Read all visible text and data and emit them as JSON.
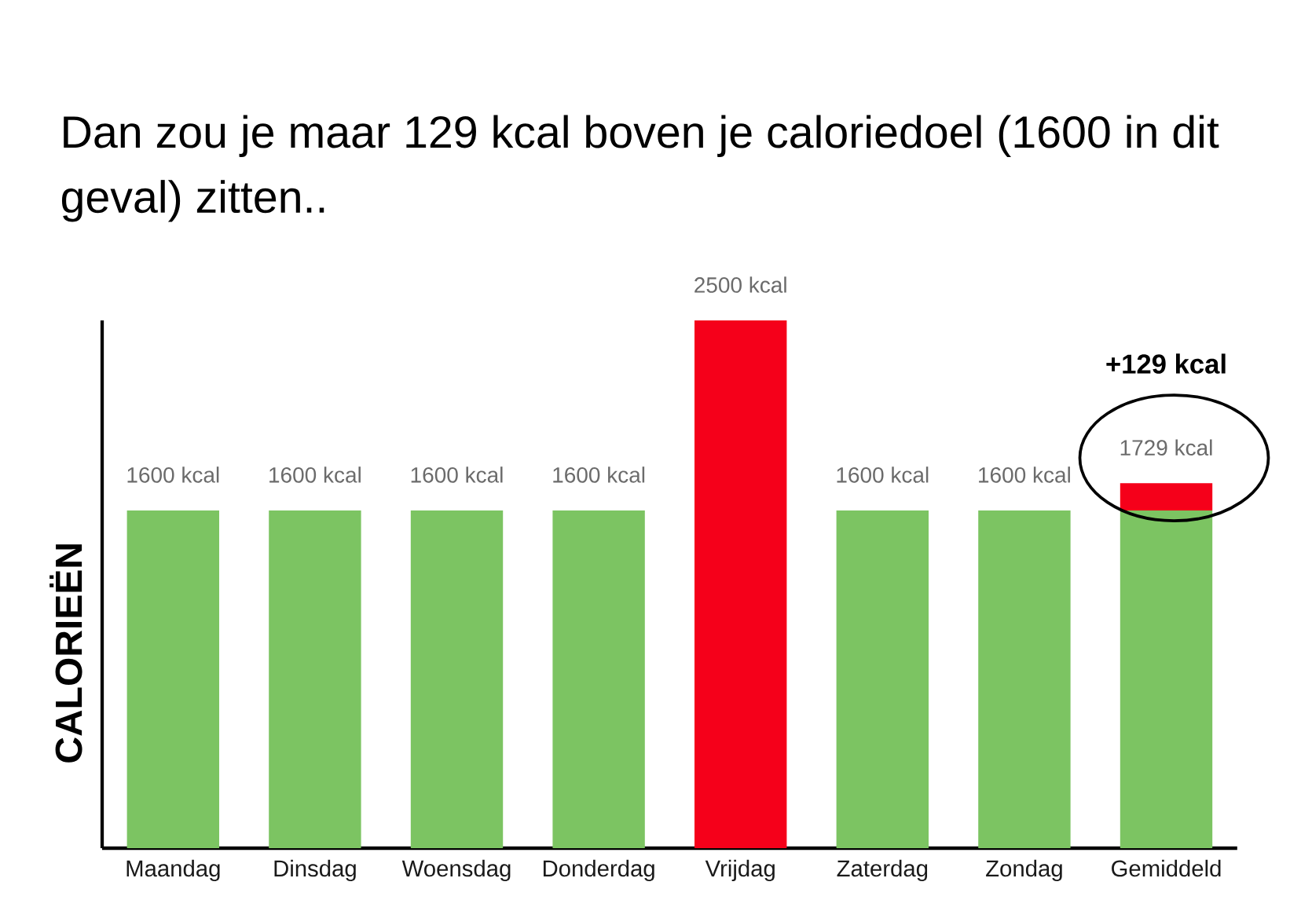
{
  "chart_data": {
    "type": "bar",
    "title": "Dan zou je maar 129 kcal boven je caloriedoel (1600 in dit geval) zitten..",
    "ylabel": "CALORIEËN",
    "categories": [
      "Maandag",
      "Dinsdag",
      "Woensdag",
      "Donderdag",
      "Vrijdag",
      "Zaterdag",
      "Zondag",
      "Gemiddeld"
    ],
    "stacked": true,
    "series": [
      {
        "color": "#7cc462",
        "values": [
          1600,
          1600,
          1600,
          1600,
          null,
          1600,
          1600,
          1600
        ],
        "value_labels": [
          "1600 kcal",
          "1600 kcal",
          "1600 kcal",
          "1600 kcal",
          null,
          "1600 kcal",
          "1600 kcal",
          null
        ]
      },
      {
        "color": "#f5001a",
        "values": [
          null,
          null,
          null,
          null,
          2500,
          null,
          null,
          129
        ],
        "value_labels": [
          null,
          null,
          null,
          null,
          "2500 kcal",
          null,
          null,
          null
        ]
      }
    ],
    "totals": [
      null,
      null,
      null,
      null,
      null,
      null,
      null,
      "1729 kcal"
    ],
    "annotations": [
      "+129 kcal"
    ]
  }
}
